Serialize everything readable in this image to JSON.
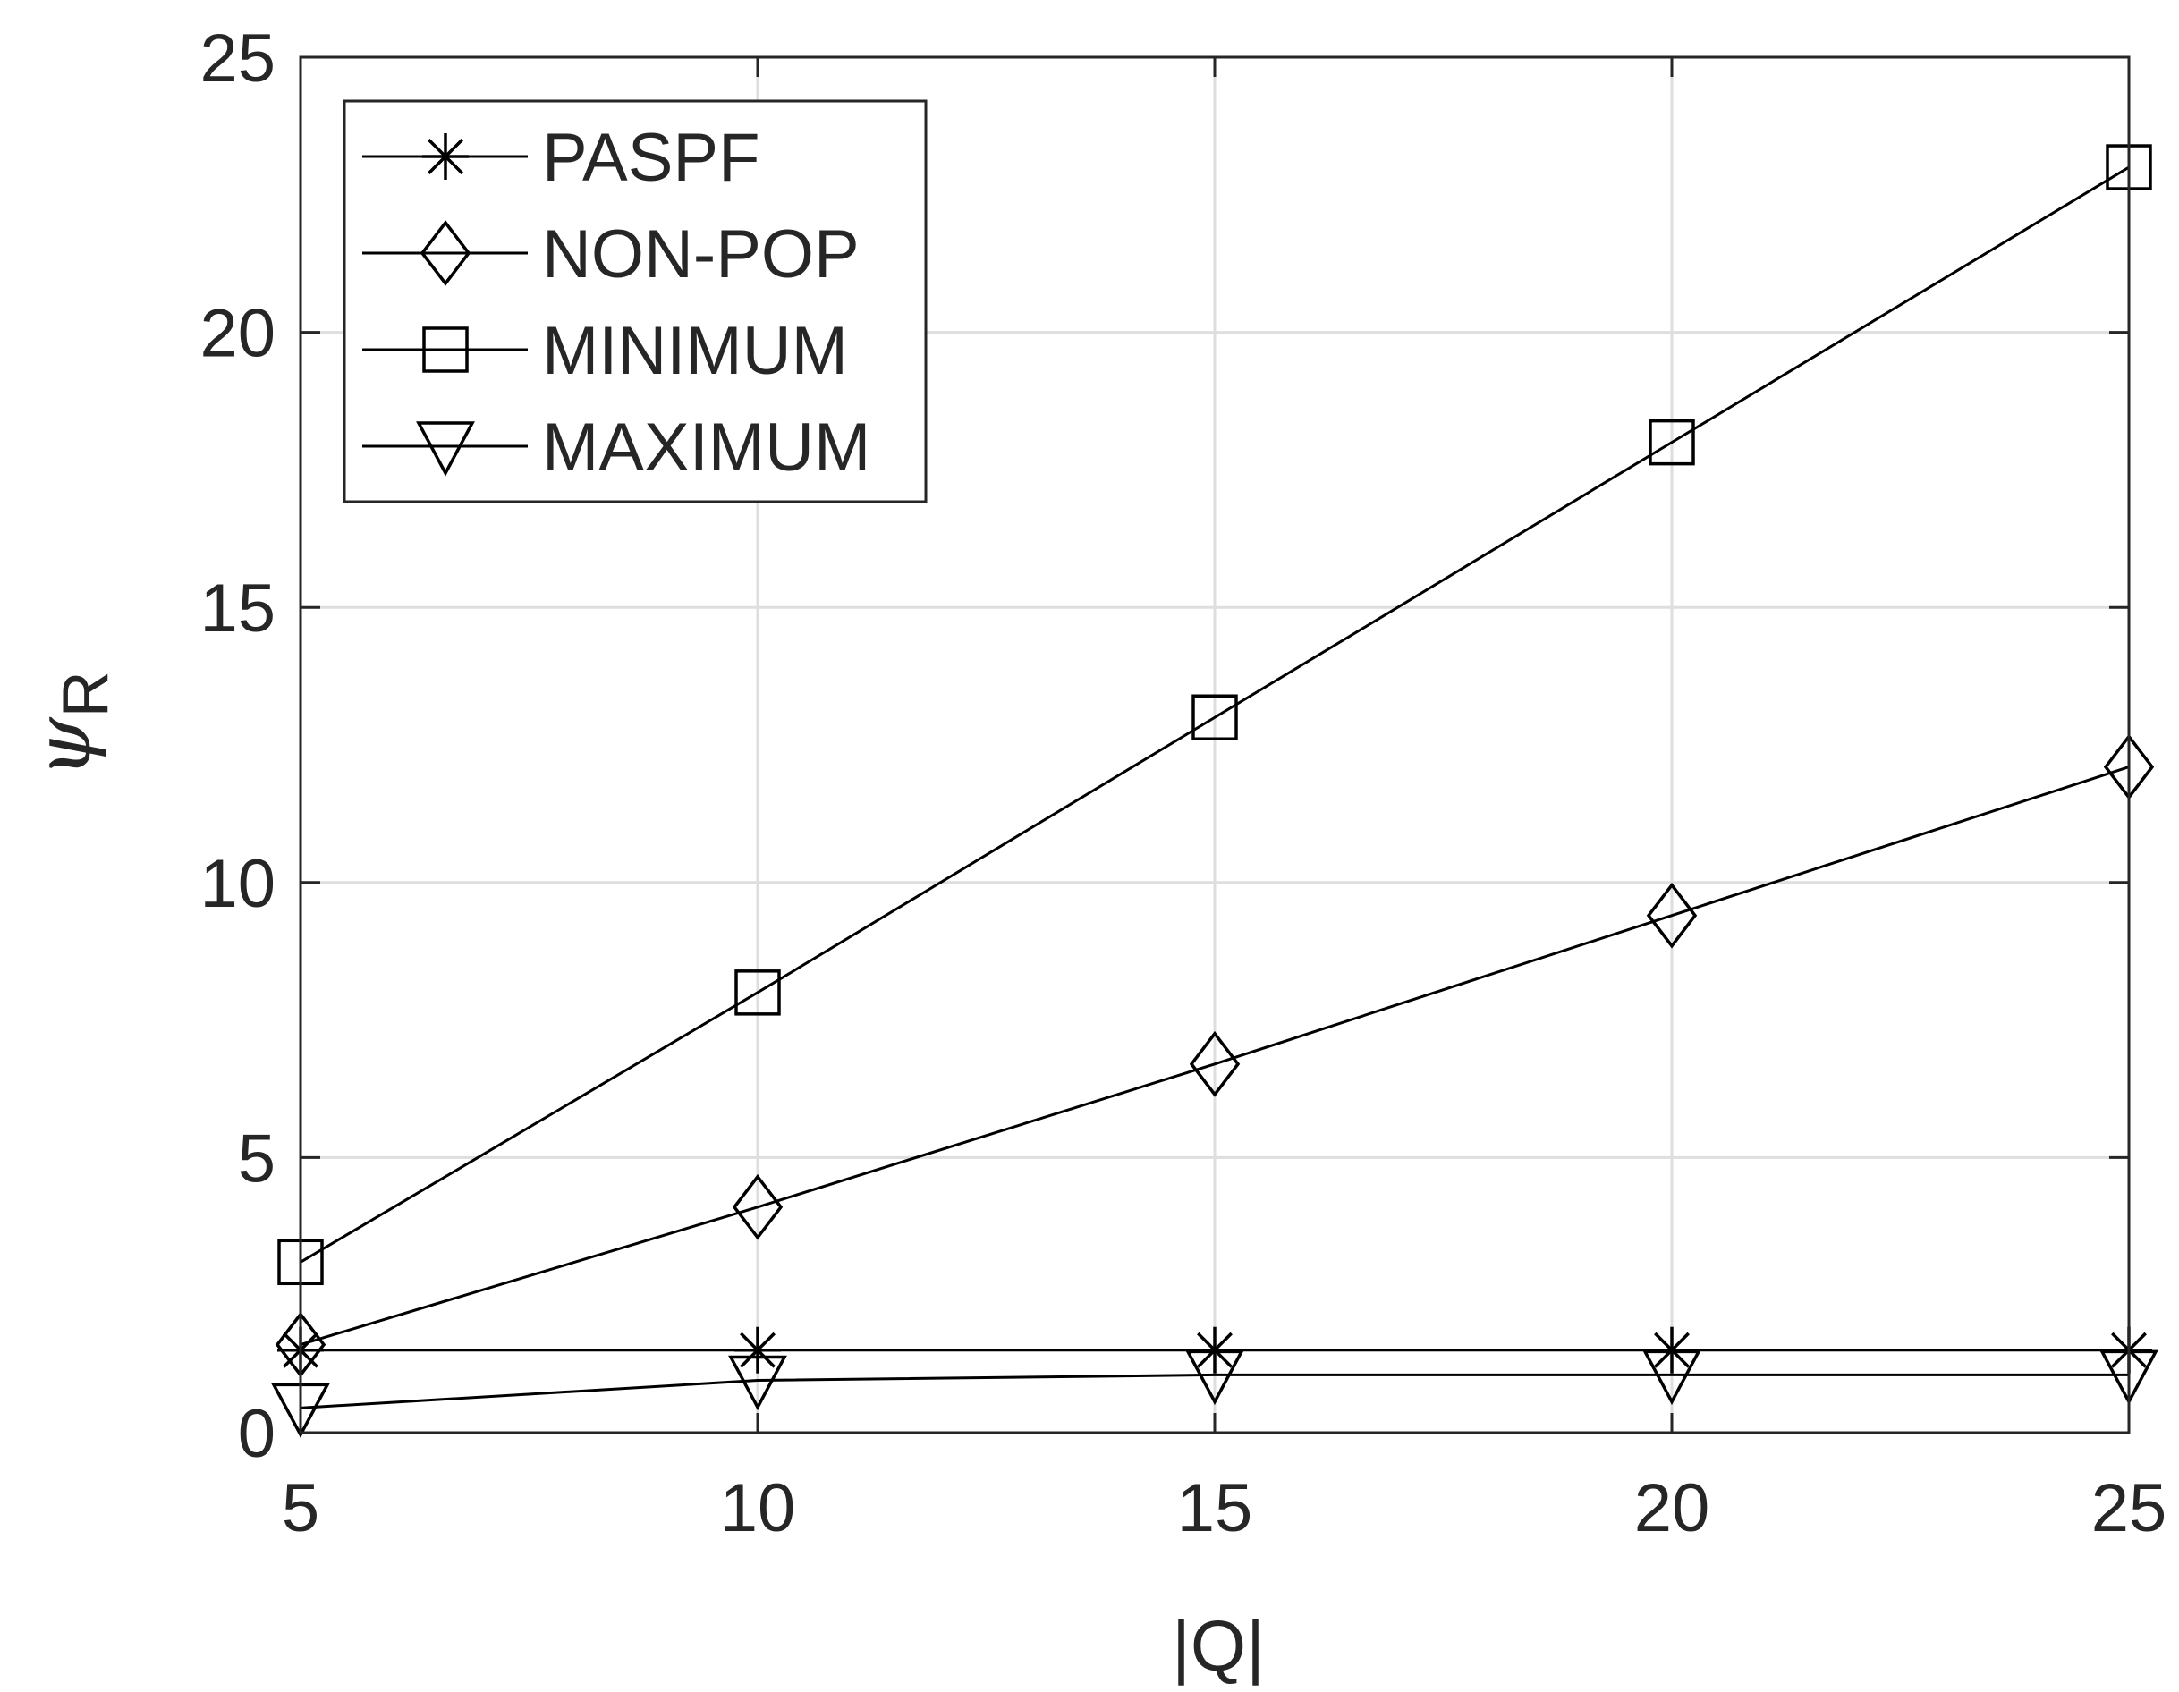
{
  "chart_data": {
    "type": "line",
    "title": "",
    "xlabel": "|Q|",
    "ylabel_main": "ψ",
    "ylabel_sub": "R",
    "x": [
      5,
      10,
      15,
      20,
      25
    ],
    "xlim": [
      5,
      25
    ],
    "ylim": [
      0,
      25
    ],
    "xticks": [
      5,
      10,
      15,
      20,
      25
    ],
    "yticks": [
      0,
      5,
      10,
      15,
      20,
      25
    ],
    "grid": true,
    "legend_position": "top-left",
    "series": [
      {
        "name": "PASPF",
        "marker": "asterisk",
        "color": "#000000",
        "values": [
          1.5,
          1.5,
          1.5,
          1.5,
          1.5
        ]
      },
      {
        "name": "NON-POP",
        "marker": "diamond",
        "color": "#000000",
        "values": [
          1.6,
          4.1,
          6.7,
          9.4,
          12.1
        ]
      },
      {
        "name": "MINIMUM",
        "marker": "square",
        "color": "#000000",
        "values": [
          3.1,
          8.0,
          13.0,
          18.0,
          23.0
        ]
      },
      {
        "name": "MAXIMUM",
        "marker": "triangle-down",
        "color": "#000000",
        "values": [
          0.45,
          0.95,
          1.05,
          1.05,
          1.05
        ]
      }
    ]
  }
}
